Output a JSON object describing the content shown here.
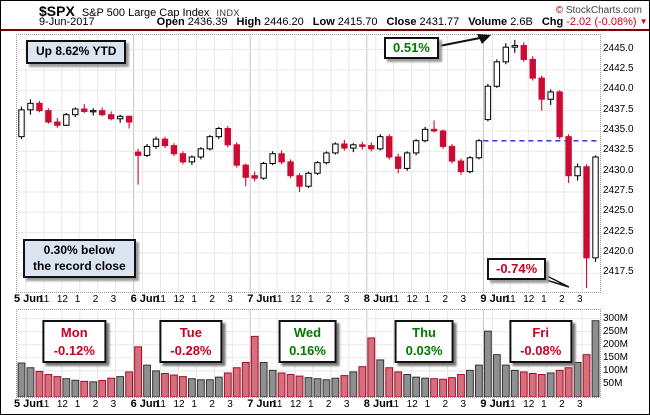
{
  "header": {
    "symbol": "$SPX",
    "name": "S&P 500 Large Cap Index",
    "exchange": "INDX",
    "brand_copy": "©",
    "brand_text": "StockCharts.com",
    "date": "9-Jun-2017",
    "fields": [
      {
        "label": "Open",
        "value": "2436.39"
      },
      {
        "label": "High",
        "value": "2446.20"
      },
      {
        "label": "Low",
        "value": "2415.70"
      },
      {
        "label": "Close",
        "value": "2431.77"
      },
      {
        "label": "Volume",
        "value": "2.6B"
      }
    ],
    "chg": {
      "label": "Chg",
      "value": "-2.02 (-0.08%)",
      "arrow": "▼"
    }
  },
  "annotations": {
    "ytd_label": "Up 8.62% YTD",
    "gap_label": "0.51%",
    "record_line1": "0.30% below",
    "record_line2": "the record close",
    "drop_label": "-0.74%"
  },
  "colors": {
    "candle_up_stroke": "#000000",
    "candle_up_fill": "#ffffff",
    "candle_down": "#cc0a33",
    "vol_up_fill": "#8f8f8f",
    "vol_up_stroke": "#333333",
    "vol_down_fill": "#d46f7d",
    "vol_down_stroke": "#aa0a28",
    "grid_light": "#e8e8e8",
    "grid_day": "#c4c4c4",
    "prev_close_line": "#2222cc",
    "up_text": "#007a00",
    "down_text": "#cc0022",
    "header_sep": "#7d0000"
  },
  "chart_data": {
    "type": "candlestick+volume",
    "title": "$SPX S&P 500 Large Cap Index, 9-Jun-2017, 30-minute bars, 5 days",
    "y_axis": {
      "ticks": [
        2445.0,
        2442.5,
        2440.0,
        2437.5,
        2435.0,
        2432.5,
        2430.0,
        2427.5,
        2425.0,
        2422.5,
        2420.0,
        2417.5
      ],
      "range": [
        2415.2,
        2446.8
      ]
    },
    "volume_axis": {
      "ticks_m": [
        300,
        250,
        200,
        150,
        100,
        50
      ],
      "max_millions": 310
    },
    "prev_close_line": 2433.79,
    "hour_labels": [
      "11",
      "12",
      "1",
      "2",
      "3"
    ],
    "days": [
      {
        "label": "5 Jun",
        "weekday": "Mon",
        "change": "-0.12%",
        "direction": "down"
      },
      {
        "label": "6 Jun",
        "weekday": "Tue",
        "change": "-0.28%",
        "direction": "down"
      },
      {
        "label": "7 Jun",
        "weekday": "Wed",
        "change": "0.16%",
        "direction": "up"
      },
      {
        "label": "8 Jun",
        "weekday": "Thu",
        "change": "0.03%",
        "direction": "up"
      },
      {
        "label": "9 Jun",
        "weekday": "Fri",
        "change": "-0.08%",
        "direction": "down"
      }
    ],
    "candles": [
      [
        2434.3,
        2438.0,
        2434.0,
        2437.6
      ],
      [
        2437.6,
        2438.9,
        2437.0,
        2438.4
      ],
      [
        2438.4,
        2438.7,
        2437.3,
        2437.5
      ],
      [
        2437.5,
        2437.8,
        2435.9,
        2436.1
      ],
      [
        2436.1,
        2436.6,
        2435.4,
        2435.7
      ],
      [
        2435.7,
        2437.2,
        2435.6,
        2437.0
      ],
      [
        2437.0,
        2437.9,
        2436.7,
        2437.7
      ],
      [
        2437.7,
        2438.3,
        2437.2,
        2437.4
      ],
      [
        2437.4,
        2437.8,
        2436.9,
        2437.5
      ],
      [
        2437.5,
        2437.9,
        2436.8,
        2437.0
      ],
      [
        2437.0,
        2437.4,
        2436.3,
        2436.5
      ],
      [
        2436.5,
        2437.0,
        2436.0,
        2436.8
      ],
      [
        2436.8,
        2436.9,
        2435.3,
        2436.1
      ],
      [
        2432.4,
        2432.8,
        2428.4,
        2432.0
      ],
      [
        2432.0,
        2433.4,
        2431.8,
        2433.1
      ],
      [
        2433.1,
        2434.3,
        2432.8,
        2434.0
      ],
      [
        2434.0,
        2434.3,
        2432.9,
        2433.2
      ],
      [
        2433.2,
        2433.5,
        2431.9,
        2432.2
      ],
      [
        2432.2,
        2432.5,
        2430.9,
        2431.2
      ],
      [
        2431.2,
        2432.0,
        2430.8,
        2431.8
      ],
      [
        2431.8,
        2433.0,
        2431.5,
        2432.8
      ],
      [
        2432.8,
        2434.5,
        2432.6,
        2434.3
      ],
      [
        2434.3,
        2435.5,
        2434.0,
        2435.3
      ],
      [
        2435.3,
        2435.6,
        2433.0,
        2433.3
      ],
      [
        2433.3,
        2433.6,
        2430.5,
        2430.8
      ],
      [
        2430.8,
        2431.0,
        2428.2,
        2429.3
      ],
      [
        2429.5,
        2430.0,
        2428.8,
        2429.2
      ],
      [
        2429.2,
        2431.2,
        2429.0,
        2431.0
      ],
      [
        2431.0,
        2432.5,
        2430.8,
        2432.2
      ],
      [
        2432.2,
        2432.6,
        2430.9,
        2431.2
      ],
      [
        2431.2,
        2431.5,
        2429.2,
        2429.5
      ],
      [
        2429.5,
        2429.8,
        2427.5,
        2428.2
      ],
      [
        2428.2,
        2430.0,
        2428.0,
        2429.8
      ],
      [
        2429.8,
        2431.3,
        2429.6,
        2431.1
      ],
      [
        2431.1,
        2432.5,
        2430.9,
        2432.3
      ],
      [
        2432.3,
        2433.6,
        2432.1,
        2433.4
      ],
      [
        2433.4,
        2433.9,
        2432.6,
        2432.9
      ],
      [
        2432.9,
        2433.5,
        2432.4,
        2433.3
      ],
      [
        2433.3,
        2433.7,
        2432.7,
        2433.1
      ],
      [
        2433.2,
        2433.6,
        2432.5,
        2432.8
      ],
      [
        2432.8,
        2434.6,
        2432.6,
        2434.3
      ],
      [
        2434.3,
        2434.6,
        2431.5,
        2431.8
      ],
      [
        2431.8,
        2432.2,
        2429.8,
        2430.4
      ],
      [
        2430.4,
        2432.5,
        2430.1,
        2432.3
      ],
      [
        2432.3,
        2434.0,
        2432.0,
        2433.8
      ],
      [
        2433.8,
        2435.5,
        2433.6,
        2435.2
      ],
      [
        2435.2,
        2436.3,
        2434.8,
        2435.0
      ],
      [
        2435.0,
        2435.2,
        2432.8,
        2433.1
      ],
      [
        2433.1,
        2433.4,
        2431.0,
        2431.3
      ],
      [
        2431.3,
        2431.6,
        2429.6,
        2430.0
      ],
      [
        2430.0,
        2431.9,
        2429.8,
        2431.7
      ],
      [
        2431.7,
        2434.0,
        2431.5,
        2433.8
      ],
      [
        2436.4,
        2440.8,
        2436.2,
        2440.5
      ],
      [
        2440.5,
        2443.8,
        2440.3,
        2443.5
      ],
      [
        2443.5,
        2445.8,
        2443.2,
        2445.3
      ],
      [
        2445.3,
        2446.2,
        2444.6,
        2445.5
      ],
      [
        2445.5,
        2445.9,
        2443.5,
        2443.8
      ],
      [
        2443.8,
        2444.2,
        2441.2,
        2441.5
      ],
      [
        2441.5,
        2441.8,
        2437.5,
        2438.9
      ],
      [
        2438.9,
        2440.1,
        2438.2,
        2439.8
      ],
      [
        2439.8,
        2440.0,
        2434.0,
        2434.3
      ],
      [
        2434.3,
        2434.6,
        2428.6,
        2429.5
      ],
      [
        2429.5,
        2431.0,
        2428.9,
        2430.6
      ],
      [
        2430.6,
        2430.9,
        2415.7,
        2419.4
      ],
      [
        2419.4,
        2432.0,
        2418.9,
        2431.8
      ]
    ],
    "volumes_millions": [
      130,
      112,
      98,
      86,
      78,
      70,
      64,
      60,
      58,
      63,
      72,
      78,
      96,
      192,
      122,
      100,
      90,
      84,
      78,
      70,
      66,
      66,
      76,
      92,
      112,
      132,
      232,
      132,
      102,
      92,
      86,
      80,
      74,
      70,
      66,
      72,
      82,
      96,
      116,
      226,
      142,
      112,
      96,
      86,
      76,
      72,
      70,
      68,
      74,
      86,
      102,
      122,
      252,
      162,
      122,
      102,
      96,
      90,
      86,
      92,
      102,
      112,
      132,
      162,
      292
    ]
  }
}
